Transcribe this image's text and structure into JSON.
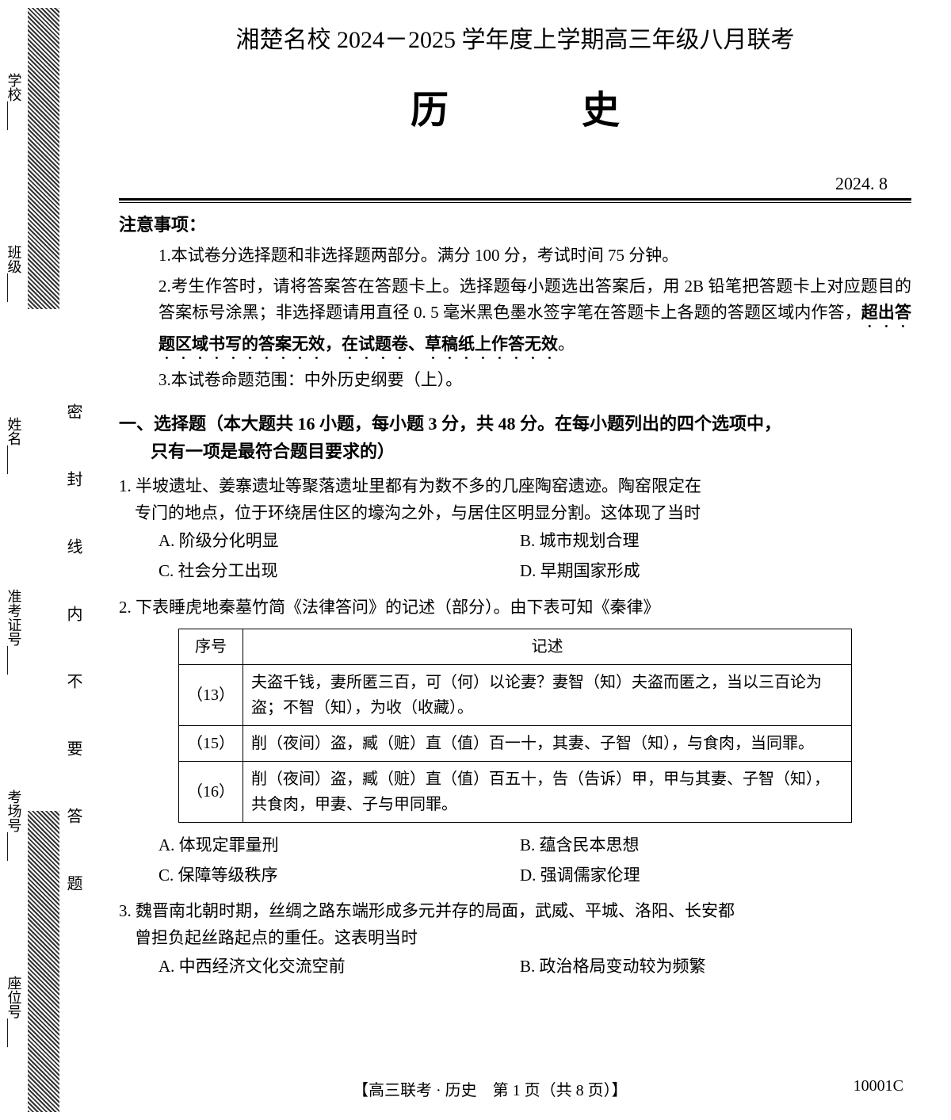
{
  "binding": {
    "labels": [
      "学校____",
      "班级____",
      "姓名____",
      "准考证号____",
      "考场号____",
      "座位号____"
    ],
    "seal_text": "密 封 线 内 不 要 答 题"
  },
  "header": {
    "title": "湘楚名校 2024－2025 学年度上学期高三年级八月联考",
    "subject": "历　史",
    "date": "2024. 8"
  },
  "notice": {
    "title": "注意事项：",
    "items": [
      {
        "num": "1.",
        "text": "本试卷分选择题和非选择题两部分。满分 100 分，考试时间 75 分钟。"
      },
      {
        "num": "2.",
        "text_before": "考生作答时，请将答案答在答题卡上。选择题每小题选出答案后，用 2B 铅笔把答题卡上对应题目的答案标号涂黑；非选择题请用直径 0. 5 毫米黑色墨水签字笔在答题卡上各题的答题区域内作答，",
        "text_emphasis": "超出答题区域书写的答案无效，在试题卷、草稿纸上作答无效",
        "text_after": "。"
      },
      {
        "num": "3.",
        "text": "本试卷命题范围：中外历史纲要（上）。"
      }
    ]
  },
  "section1": {
    "title_line1": "一、选择题（本大题共 16 小题，每小题 3 分，共 48 分。在每小题列出的四个选项中，",
    "title_line2": "只有一项是最符合题目要求的）"
  },
  "q1": {
    "text_line1": "1. 半坡遗址、姜寨遗址等聚落遗址里都有为数不多的几座陶窑遗迹。陶窑限定在",
    "text_line2": "专门的地点，位于环绕居住区的壕沟之外，与居住区明显分割。这体现了当时",
    "options": {
      "A": "A. 阶级分化明显",
      "B": "B. 城市规划合理",
      "C": "C. 社会分工出现",
      "D": "D. 早期国家形成"
    }
  },
  "q2": {
    "text": "2. 下表睡虎地秦墓竹简《法律答问》的记述（部分）。由下表可知《秦律》",
    "table": {
      "headers": [
        "序号",
        "记述"
      ],
      "rows": [
        {
          "seq": "（13）",
          "desc": "夫盗千钱，妻所匿三百，可（何）以论妻？妻智（知）夫盗而匿之，当以三百论为盗；不智（知），为收（收藏）。"
        },
        {
          "seq": "（15）",
          "desc": "削（夜间）盗，臧（赃）直（值）百一十，其妻、子智（知），与食肉，当同罪。"
        },
        {
          "seq": "（16）",
          "desc": "削（夜间）盗，臧（赃）直（值）百五十，告（告诉）甲，甲与其妻、子智（知），共食肉，甲妻、子与甲同罪。"
        }
      ]
    },
    "options": {
      "A": "A. 体现定罪量刑",
      "B": "B. 蕴含民本思想",
      "C": "C. 保障等级秩序",
      "D": "D. 强调儒家伦理"
    }
  },
  "q3": {
    "text_line1": "3. 魏晋南北朝时期，丝绸之路东端形成多元并存的局面，武威、平城、洛阳、长安都",
    "text_line2": "曾担负起丝路起点的重任。这表明当时",
    "options": {
      "A": "A. 中西经济文化交流空前",
      "B": "B. 政治格局变动较为频繁"
    }
  },
  "footer": {
    "center": "【高三联考 · 历史　第 1 页（共 8 页）】",
    "right": "10001C"
  }
}
